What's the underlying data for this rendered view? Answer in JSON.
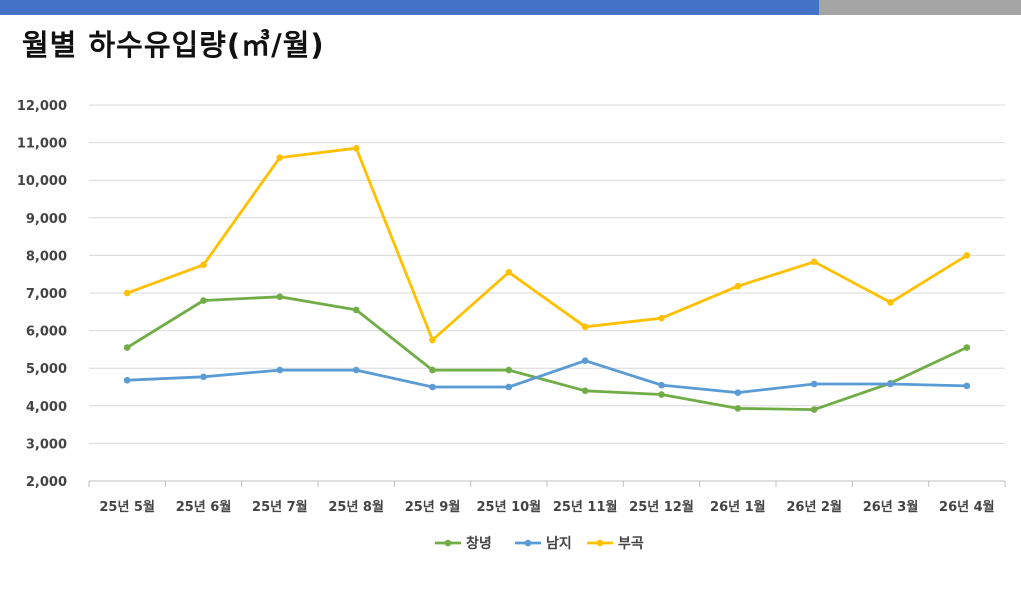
{
  "title": "월별 하수유입량(㎥/월)",
  "colors": {
    "bar_primary": "#4472c4",
    "bar_secondary": "#a5a5a5"
  },
  "chart_data": {
    "type": "line",
    "title": "월별 하수유입량(㎥/월)",
    "categories": [
      "25년 5월",
      "25년 6월",
      "25년 7월",
      "25년 8월",
      "25년 9월",
      "25년 10월",
      "25년 11월",
      "25년 12월",
      "26년 1월",
      "26년 2월",
      "26년 3월",
      "26년 4월"
    ],
    "series": [
      {
        "name": "창녕",
        "color": "#70ad47",
        "values": [
          5550,
          6800,
          6900,
          6550,
          4950,
          4950,
          4400,
          4300,
          3930,
          3900,
          4600,
          5550
        ]
      },
      {
        "name": "남지",
        "color": "#5b9bd5",
        "values": [
          4680,
          4770,
          4950,
          4950,
          4500,
          4500,
          5200,
          4550,
          4350,
          4580,
          4580,
          4530
        ]
      },
      {
        "name": "부곡",
        "color": "#ffc000",
        "values": [
          7000,
          7750,
          10600,
          10850,
          5750,
          7550,
          6100,
          6330,
          7180,
          7830,
          6750,
          8000
        ]
      }
    ],
    "ylim": [
      2000,
      12000
    ],
    "yticks": [
      "2,000",
      "3,000",
      "4,000",
      "5,000",
      "6,000",
      "7,000",
      "8,000",
      "9,000",
      "10,000",
      "11,000",
      "12,000"
    ],
    "grid": true,
    "legend_position": "bottom"
  }
}
